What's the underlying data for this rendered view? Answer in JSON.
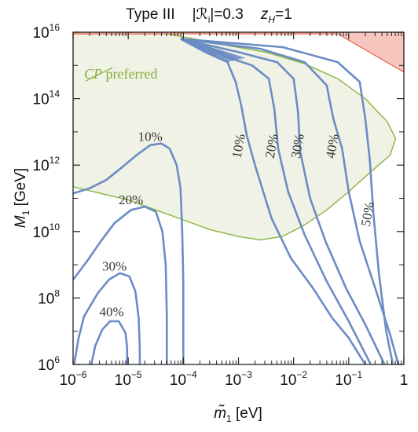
{
  "chart_data": {
    "type": "line",
    "title_parts": [
      "Type III",
      "|ℛ",
      "i",
      "|=0.3",
      "z",
      "H",
      "=1"
    ],
    "xlabel_parts": [
      "m̃",
      "1",
      " [eV]"
    ],
    "ylabel_parts": [
      "M",
      "1",
      " [GeV]"
    ],
    "x_scale": "log",
    "y_scale": "log",
    "xlim": [
      1e-06,
      1
    ],
    "ylim": [
      1000000.0,
      1e+16
    ],
    "x_ticks": [
      {
        "base": "10",
        "exp": "−6"
      },
      {
        "base": "10",
        "exp": "−5"
      },
      {
        "base": "10",
        "exp": "−4"
      },
      {
        "base": "10",
        "exp": "−3"
      },
      {
        "base": "10",
        "exp": "−2"
      },
      {
        "base": "10",
        "exp": "−1"
      },
      {
        "base": "1",
        "exp": ""
      }
    ],
    "y_ticks": [
      {
        "base": "10",
        "exp": "6"
      },
      {
        "base": "10",
        "exp": "8"
      },
      {
        "base": "10",
        "exp": "10"
      },
      {
        "base": "10",
        "exp": "12"
      },
      {
        "base": "10",
        "exp": "14"
      },
      {
        "base": "10",
        "exp": "16"
      }
    ],
    "region_label": "CP preferred",
    "region_label_slashed": "CP",
    "region_label_rest": " preferred",
    "colors": {
      "contour": "#6b8cc4",
      "region_fill": "#f0f2e6",
      "region_edge": "#8ab43c",
      "excluded_fill": "#f7c6bf",
      "excluded_edge": "#e8674f"
    },
    "low_contours": [
      {
        "label": "10%",
        "points": [
          [
            -6.0,
            11.15
          ],
          [
            -5.7,
            11.3
          ],
          [
            -5.4,
            11.55
          ],
          [
            -5.1,
            11.95
          ],
          [
            -4.85,
            12.3
          ],
          [
            -4.6,
            12.6
          ],
          [
            -4.4,
            12.65
          ],
          [
            -4.25,
            12.5
          ],
          [
            -4.12,
            12.0
          ],
          [
            -4.05,
            11.3
          ],
          [
            -4.02,
            10.0
          ],
          [
            -4.0,
            8.5
          ],
          [
            -4.0,
            6.0
          ]
        ]
      },
      {
        "label": "20%",
        "points": [
          [
            -6.0,
            8.55
          ],
          [
            -5.75,
            9.1
          ],
          [
            -5.5,
            9.7
          ],
          [
            -5.25,
            10.25
          ],
          [
            -4.95,
            10.65
          ],
          [
            -4.7,
            10.75
          ],
          [
            -4.5,
            10.6
          ],
          [
            -4.38,
            10.0
          ],
          [
            -4.32,
            9.0
          ],
          [
            -4.3,
            7.5
          ],
          [
            -4.3,
            6.0
          ]
        ]
      },
      {
        "label": "30%",
        "points": [
          [
            -5.98,
            6.0
          ],
          [
            -5.9,
            6.8
          ],
          [
            -5.8,
            7.45
          ],
          [
            -5.55,
            8.15
          ],
          [
            -5.35,
            8.55
          ],
          [
            -5.15,
            8.75
          ],
          [
            -4.98,
            8.65
          ],
          [
            -4.87,
            8.2
          ],
          [
            -4.81,
            7.4
          ],
          [
            -4.79,
            6.5
          ],
          [
            -4.79,
            6.0
          ]
        ]
      },
      {
        "label": "40%",
        "points": [
          [
            -5.67,
            6.0
          ],
          [
            -5.6,
            6.55
          ],
          [
            -5.47,
            7.05
          ],
          [
            -5.33,
            7.3
          ],
          [
            -5.17,
            7.3
          ],
          [
            -5.05,
            6.95
          ],
          [
            -5.02,
            6.5
          ],
          [
            -5.02,
            6.0
          ]
        ]
      }
    ],
    "high_contours": [
      {
        "label": "10%",
        "points": [
          [
            -4.05,
            15.8
          ],
          [
            -3.6,
            15.4
          ],
          [
            -3.2,
            15.1
          ],
          [
            -3.05,
            14.5
          ],
          [
            -2.95,
            13.8
          ],
          [
            -2.85,
            12.9
          ],
          [
            -2.7,
            12.0
          ],
          [
            -2.4,
            10.4
          ],
          [
            -2.05,
            9.2
          ],
          [
            -1.65,
            8.3
          ],
          [
            -1.3,
            7.4
          ],
          [
            -1.0,
            6.8
          ],
          [
            -0.7,
            6.0
          ]
        ]
      },
      {
        "label": "20%",
        "points": [
          [
            -4.05,
            15.8
          ],
          [
            -3.3,
            15.3
          ],
          [
            -2.75,
            15.0
          ],
          [
            -2.45,
            14.6
          ],
          [
            -2.35,
            13.7
          ],
          [
            -2.28,
            12.5
          ],
          [
            -2.1,
            11.2
          ],
          [
            -1.8,
            9.9
          ],
          [
            -1.4,
            8.5
          ],
          [
            -1.0,
            7.3
          ],
          [
            -0.6,
            6.0
          ]
        ]
      },
      {
        "label": "30%",
        "points": [
          [
            -4.05,
            15.8
          ],
          [
            -3.0,
            15.4
          ],
          [
            -2.3,
            15.1
          ],
          [
            -2.0,
            14.6
          ],
          [
            -1.92,
            13.6
          ],
          [
            -1.88,
            12.4
          ],
          [
            -1.7,
            11.0
          ],
          [
            -1.42,
            9.7
          ],
          [
            -1.05,
            8.3
          ],
          [
            -0.7,
            7.2
          ],
          [
            -0.35,
            6.0
          ]
        ]
      },
      {
        "label": "40%",
        "points": [
          [
            -4.05,
            15.8
          ],
          [
            -2.6,
            15.5
          ],
          [
            -1.8,
            15.1
          ],
          [
            -1.4,
            14.4
          ],
          [
            -1.28,
            13.4
          ],
          [
            -1.12,
            12.5
          ],
          [
            -1.0,
            11.2
          ],
          [
            -0.8,
            9.7
          ],
          [
            -0.5,
            8.2
          ],
          [
            -0.25,
            6.9
          ],
          [
            -0.1,
            6.0
          ]
        ]
      },
      {
        "label": "50%",
        "points": [
          [
            -4.05,
            15.8
          ],
          [
            -2.2,
            15.55
          ],
          [
            -1.2,
            15.1
          ],
          [
            -0.8,
            14.5
          ],
          [
            -0.7,
            13.4
          ],
          [
            -0.62,
            12.2
          ],
          [
            -0.55,
            10.5
          ],
          [
            -0.45,
            8.7
          ],
          [
            -0.32,
            7.0
          ],
          [
            -0.2,
            6.0
          ]
        ]
      }
    ],
    "cp_region": [
      [
        -6.0,
        11.35
      ],
      [
        -5.5,
        11.15
      ],
      [
        -5.0,
        10.95
      ],
      [
        -4.5,
        10.65
      ],
      [
        -4.0,
        10.35
      ],
      [
        -3.5,
        10.05
      ],
      [
        -3.0,
        9.85
      ],
      [
        -2.6,
        9.75
      ],
      [
        -2.2,
        9.85
      ],
      [
        -1.8,
        10.2
      ],
      [
        -1.4,
        10.65
      ],
      [
        -1.0,
        11.2
      ],
      [
        -0.6,
        11.8
      ],
      [
        -0.25,
        12.3
      ],
      [
        -0.15,
        12.8
      ],
      [
        -0.3,
        13.3
      ],
      [
        -0.7,
        14.0
      ],
      [
        -1.2,
        14.6
      ],
      [
        -1.8,
        15.05
      ],
      [
        -2.5,
        15.4
      ],
      [
        -3.2,
        15.6
      ],
      [
        -3.8,
        15.8
      ],
      [
        -4.3,
        15.95
      ],
      [
        -5.0,
        15.95
      ],
      [
        -6.0,
        15.95
      ]
    ],
    "excluded_region": [
      [
        -6.0,
        16.0
      ],
      [
        0.0,
        16.0
      ],
      [
        0.0,
        14.8
      ],
      [
        -1.2,
        15.95
      ],
      [
        -6.0,
        15.95
      ]
    ]
  }
}
